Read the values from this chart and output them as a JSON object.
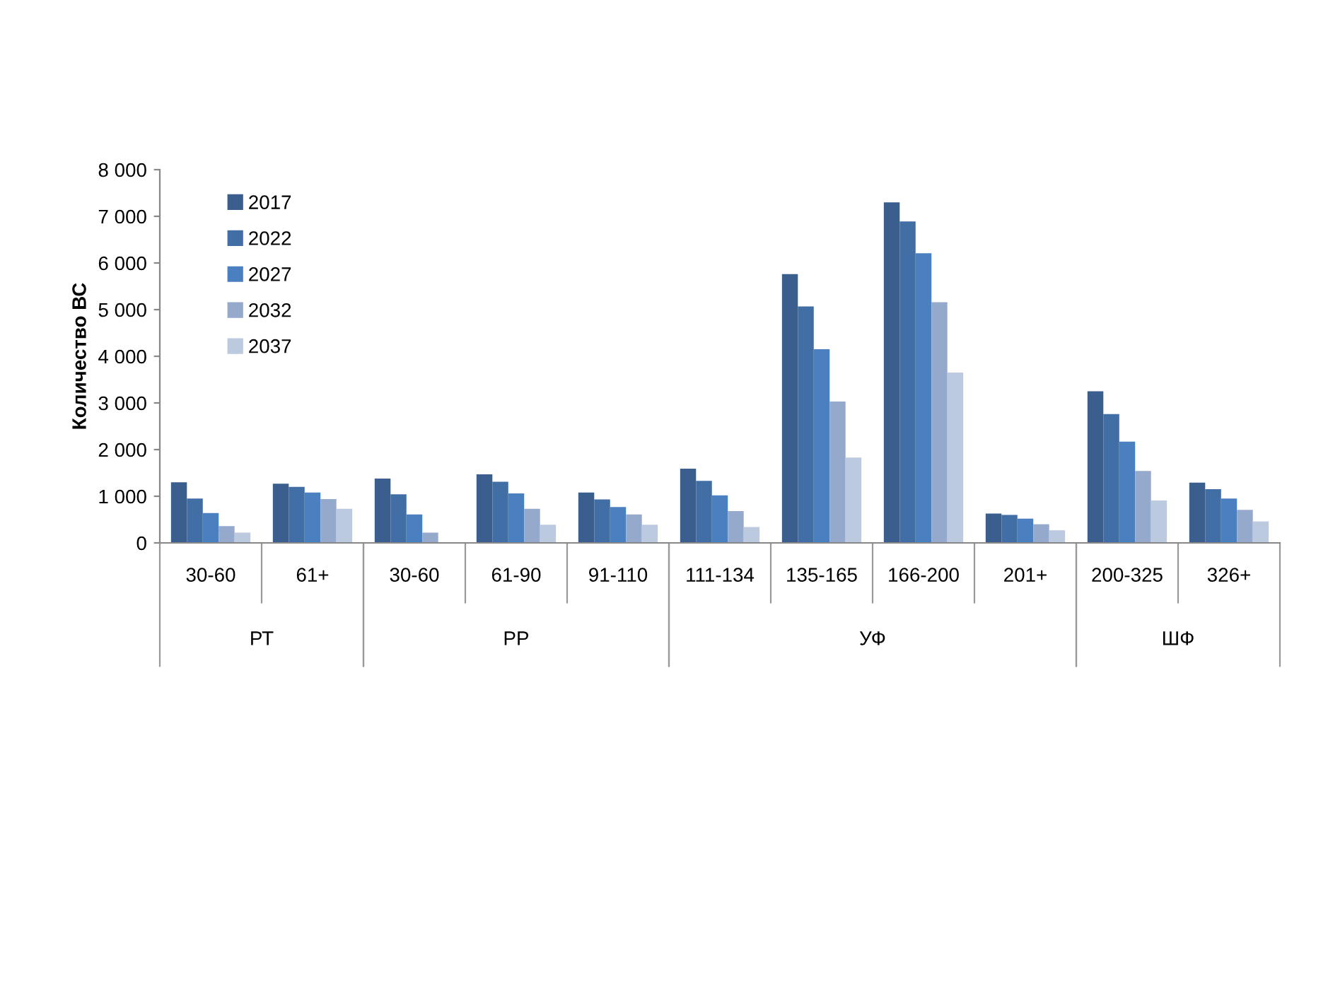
{
  "chart_data": [
    {
      "type": "bar",
      "ylabel": "Количество ВС",
      "xlabel": "РТ",
      "categories": [
        "30-60",
        "61+"
      ],
      "series": [
        {
          "name": "2017",
          "color": "#3a5f8f",
          "values": [
            1300,
            1270
          ]
        },
        {
          "name": "2022",
          "color": "#416fa5",
          "values": [
            950,
            1200
          ]
        },
        {
          "name": "2027",
          "color": "#4a80c0",
          "values": [
            640,
            1080
          ]
        },
        {
          "name": "2032",
          "color": "#95a9cc",
          "values": [
            360,
            940
          ]
        },
        {
          "name": "2037",
          "color": "#bccae0",
          "values": [
            220,
            730
          ]
        }
      ],
      "ylim": [
        0,
        8000
      ],
      "yticks": [
        0,
        {
          "value": 1000,
          "label": "1 000"
        },
        {
          "value": 2000,
          "label": "2 000"
        },
        {
          "value": 3000,
          "label": "3 000"
        },
        {
          "value": 4000,
          "label": "4 000"
        },
        {
          "value": 5000,
          "label": "5 000"
        },
        {
          "value": 6000,
          "label": "6 000"
        },
        {
          "value": 7000,
          "label": "7 000"
        },
        {
          "value": 8000,
          "label": "8 000"
        }
      ],
      "grid": false,
      "legend": "top left"
    },
    {
      "type": "bar",
      "xlabel": "РР",
      "categories": [
        "30-60",
        "61-90",
        "91-110"
      ],
      "series": [
        {
          "color": "#3a5f8f",
          "values": [
            1380,
            1470,
            1080
          ]
        },
        {
          "color": "#416fa5",
          "values": [
            1040,
            1310,
            930
          ]
        },
        {
          "color": "#4a80c0",
          "values": [
            610,
            1060,
            770
          ]
        },
        {
          "color": "#95a9cc",
          "values": [
            220,
            730,
            610
          ]
        },
        {
          "color": "#bccae0",
          "values": [
            0,
            390,
            390
          ]
        }
      ],
      "ylim": [
        0,
        8000
      ],
      "tick_labels": "x"
    },
    {
      "type": "bar",
      "xlabel": "УФ",
      "categories": [
        "111-134",
        "135-165",
        "166-200",
        "201+"
      ],
      "series": [
        {
          "color": "#3a5f8f",
          "values": [
            1590,
            5760,
            7300,
            630
          ]
        },
        {
          "color": "#416fa5",
          "values": [
            1330,
            5070,
            6890,
            600
          ]
        },
        {
          "color": "#4a80c0",
          "values": [
            1020,
            4150,
            6210,
            520
          ]
        },
        {
          "color": "#95a9cc",
          "values": [
            680,
            3030,
            5160,
            400
          ]
        },
        {
          "color": "#bccae0",
          "values": [
            340,
            1830,
            3650,
            270
          ]
        }
      ],
      "ylim": [
        0,
        8000
      ],
      "tick_labels": "x"
    },
    {
      "type": "bar",
      "xlabel": "ШФ",
      "categories": [
        "200-325",
        "326+"
      ],
      "series": [
        {
          "color": "#3a5f8f",
          "values": [
            3250,
            1290
          ]
        },
        {
          "color": "#416fa5",
          "values": [
            2760,
            1150
          ]
        },
        {
          "color": "#4a80c0",
          "values": [
            2170,
            950
          ]
        },
        {
          "color": "#95a9cc",
          "values": [
            1540,
            710
          ]
        },
        {
          "color": "#bccae0",
          "values": [
            910,
            460
          ]
        }
      ],
      "ylim": [
        0,
        8000
      ],
      "tick_labels": "x"
    }
  ]
}
